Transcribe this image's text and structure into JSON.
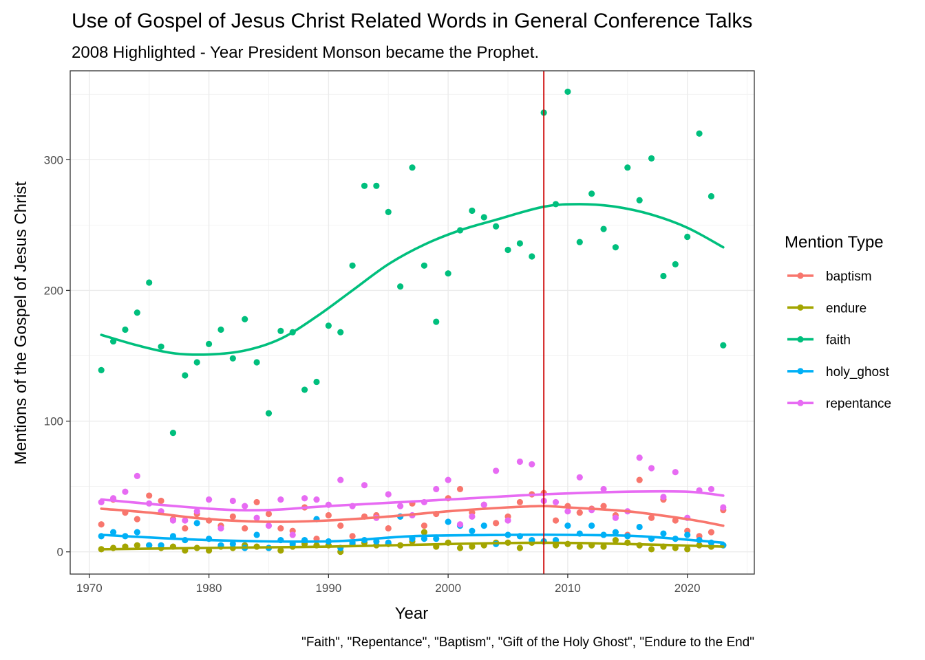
{
  "chart_data": {
    "type": "scatter",
    "title": "Use of Gospel of Jesus Christ Related Words in General Conference Talks",
    "subtitle": "2008 Highlighted - Year President Monson became the Prophet.",
    "xlabel": "Year",
    "ylabel": "Mentions of the Gospel of Jesus Christ",
    "caption": "\"Faith\", \"Repentance\", \"Baptism\", \"Gift of the Holy Ghost\", \"Endure to the End\"",
    "xlim": [
      1968.4,
      2025.6
    ],
    "ylim": [
      -17,
      368
    ],
    "x_ticks": [
      1970,
      1980,
      1990,
      2000,
      2010,
      2020
    ],
    "y_ticks": [
      0,
      100,
      200,
      300
    ],
    "grid": true,
    "highlight_year": 2008,
    "highlight_color": "#cc0000",
    "legend": {
      "title": "Mention Type",
      "position": "right"
    },
    "years": [
      1971,
      1972,
      1973,
      1974,
      1975,
      1976,
      1977,
      1978,
      1979,
      1980,
      1981,
      1982,
      1983,
      1984,
      1985,
      1986,
      1987,
      1988,
      1989,
      1990,
      1991,
      1992,
      1993,
      1994,
      1995,
      1996,
      1997,
      1998,
      1999,
      2000,
      2001,
      2002,
      2003,
      2004,
      2005,
      2006,
      2007,
      2008,
      2009,
      2010,
      2011,
      2012,
      2013,
      2014,
      2015,
      2016,
      2017,
      2018,
      2019,
      2020,
      2021,
      2022,
      2023
    ],
    "series": [
      {
        "name": "baptism",
        "color": "#F8766D",
        "values": [
          21,
          40,
          30,
          25,
          43,
          39,
          25,
          18,
          29,
          24,
          20,
          27,
          18,
          38,
          29,
          18,
          16,
          34,
          10,
          28,
          20,
          12,
          27,
          28,
          18,
          27,
          37,
          20,
          29,
          41,
          48,
          30,
          36,
          22,
          27,
          38,
          44,
          45,
          24,
          35,
          30,
          33,
          35,
          28,
          13,
          55,
          26,
          40,
          24,
          16,
          12,
          15,
          32
        ],
        "trend": [
          [
            1971,
            33
          ],
          [
            1975,
            30
          ],
          [
            1980,
            25
          ],
          [
            1985,
            23
          ],
          [
            1990,
            24
          ],
          [
            1995,
            27
          ],
          [
            2000,
            31
          ],
          [
            2005,
            34
          ],
          [
            2008,
            35
          ],
          [
            2010,
            34
          ],
          [
            2015,
            31
          ],
          [
            2020,
            25
          ],
          [
            2023,
            20
          ]
        ]
      },
      {
        "name": "endure",
        "color": "#A3A500",
        "values": [
          2,
          3,
          4,
          5,
          5,
          3,
          4,
          1,
          3,
          1,
          4,
          3,
          5,
          4,
          3,
          1,
          4,
          6,
          5,
          5,
          0,
          6,
          7,
          5,
          6,
          5,
          8,
          15,
          4,
          7,
          3,
          4,
          5,
          7,
          7,
          3,
          7,
          8,
          5,
          6,
          4,
          5,
          4,
          9,
          7,
          5,
          2,
          4,
          3,
          2,
          5,
          4,
          5
        ],
        "trend": [
          [
            1971,
            2
          ],
          [
            1980,
            3
          ],
          [
            1990,
            4
          ],
          [
            2000,
            6
          ],
          [
            2008,
            7
          ],
          [
            2015,
            6
          ],
          [
            2023,
            4
          ]
        ]
      },
      {
        "name": "faith",
        "color": "#00BF7D",
        "values": [
          139,
          161,
          170,
          183,
          206,
          157,
          91,
          135,
          145,
          159,
          170,
          148,
          178,
          145,
          106,
          169,
          168,
          124,
          130,
          173,
          168,
          219,
          280,
          280,
          260,
          203,
          294,
          219,
          176,
          213,
          246,
          261,
          256,
          249,
          231,
          236,
          226,
          336,
          266,
          352,
          237,
          274,
          247,
          233,
          294,
          269,
          301,
          211,
          220,
          241,
          320,
          272,
          158
        ],
        "trend": [
          [
            1971,
            166
          ],
          [
            1974,
            158
          ],
          [
            1977,
            152
          ],
          [
            1980,
            151
          ],
          [
            1983,
            154
          ],
          [
            1986,
            163
          ],
          [
            1989,
            180
          ],
          [
            1992,
            200
          ],
          [
            1995,
            220
          ],
          [
            1998,
            235
          ],
          [
            2001,
            246
          ],
          [
            2004,
            254
          ],
          [
            2008,
            264
          ],
          [
            2011,
            266
          ],
          [
            2014,
            264
          ],
          [
            2017,
            258
          ],
          [
            2020,
            248
          ],
          [
            2023,
            233
          ]
        ]
      },
      {
        "name": "holy_ghost",
        "color": "#00B0F6",
        "values": [
          12,
          15,
          12,
          15,
          5,
          5,
          12,
          9,
          22,
          10,
          5,
          6,
          3,
          13,
          3,
          9,
          6,
          9,
          25,
          8,
          3,
          7,
          9,
          8,
          7,
          27,
          10,
          10,
          10,
          23,
          20,
          16,
          20,
          6,
          13,
          12,
          9,
          8,
          9,
          20,
          14,
          20,
          13,
          15,
          12,
          19,
          10,
          14,
          10,
          13,
          9,
          7,
          5
        ],
        "trend": [
          [
            1971,
            13
          ],
          [
            1980,
            9
          ],
          [
            1990,
            8
          ],
          [
            1997,
            12
          ],
          [
            2005,
            13
          ],
          [
            2010,
            13
          ],
          [
            2016,
            12
          ],
          [
            2023,
            7
          ]
        ]
      },
      {
        "name": "repentance",
        "color": "#E76BF3",
        "values": [
          38,
          41,
          46,
          58,
          37,
          31,
          24,
          24,
          31,
          40,
          18,
          39,
          35,
          26,
          20,
          40,
          13,
          41,
          40,
          36,
          55,
          35,
          51,
          26,
          44,
          35,
          28,
          38,
          48,
          55,
          21,
          27,
          36,
          62,
          24,
          69,
          67,
          39,
          38,
          31,
          57,
          32,
          48,
          26,
          31,
          72,
          64,
          42,
          61,
          26,
          47,
          48,
          34
        ],
        "trend": [
          [
            1971,
            40
          ],
          [
            1980,
            33
          ],
          [
            1985,
            32
          ],
          [
            1990,
            35
          ],
          [
            2000,
            40
          ],
          [
            2008,
            44
          ],
          [
            2015,
            46
          ],
          [
            2020,
            46
          ],
          [
            2023,
            43
          ]
        ]
      }
    ]
  }
}
